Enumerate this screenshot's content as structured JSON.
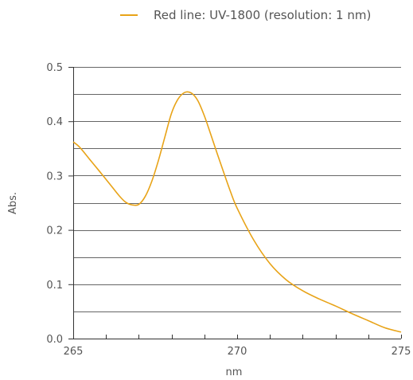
{
  "chart_data": {
    "type": "line",
    "legend": {
      "position": "top-center"
    },
    "series": [
      {
        "name": "Red line: UV-1800 (resolution: 1 nm)",
        "color": "#e8a317",
        "x": [
          265.0,
          265.2,
          265.5,
          265.8,
          266.0,
          266.2,
          266.4,
          266.6,
          266.8,
          267.0,
          267.2,
          267.4,
          267.6,
          267.8,
          268.0,
          268.2,
          268.4,
          268.6,
          268.8,
          269.0,
          269.2,
          269.4,
          269.6,
          269.8,
          270.0,
          270.5,
          271.0,
          271.5,
          272.0,
          272.5,
          273.0,
          273.5,
          274.0,
          274.5,
          275.0
        ],
        "y": [
          0.362,
          0.352,
          0.33,
          0.308,
          0.293,
          0.278,
          0.263,
          0.251,
          0.246,
          0.247,
          0.262,
          0.29,
          0.328,
          0.372,
          0.415,
          0.441,
          0.453,
          0.452,
          0.438,
          0.41,
          0.375,
          0.339,
          0.304,
          0.27,
          0.24,
          0.182,
          0.138,
          0.108,
          0.088,
          0.073,
          0.06,
          0.046,
          0.033,
          0.02,
          0.012
        ]
      }
    ],
    "xlabel": "nm",
    "ylabel": "Abs.",
    "xlim": [
      265,
      275
    ],
    "ylim": [
      0,
      0.5
    ],
    "xticks": [
      265,
      270,
      275
    ],
    "xtick_labels": [
      "265",
      "270",
      "275"
    ],
    "x_minor_step": 1,
    "yticks": [
      0.0,
      0.1,
      0.2,
      0.3,
      0.4,
      0.5
    ],
    "ytick_labels": [
      "0.0",
      "0.1",
      "0.2",
      "0.3",
      "0.4",
      "0.5"
    ],
    "y_grid_step": 0.05,
    "grid": true,
    "colors": {
      "axis": "#333333",
      "grid": "#333333",
      "text": "#555555"
    }
  }
}
